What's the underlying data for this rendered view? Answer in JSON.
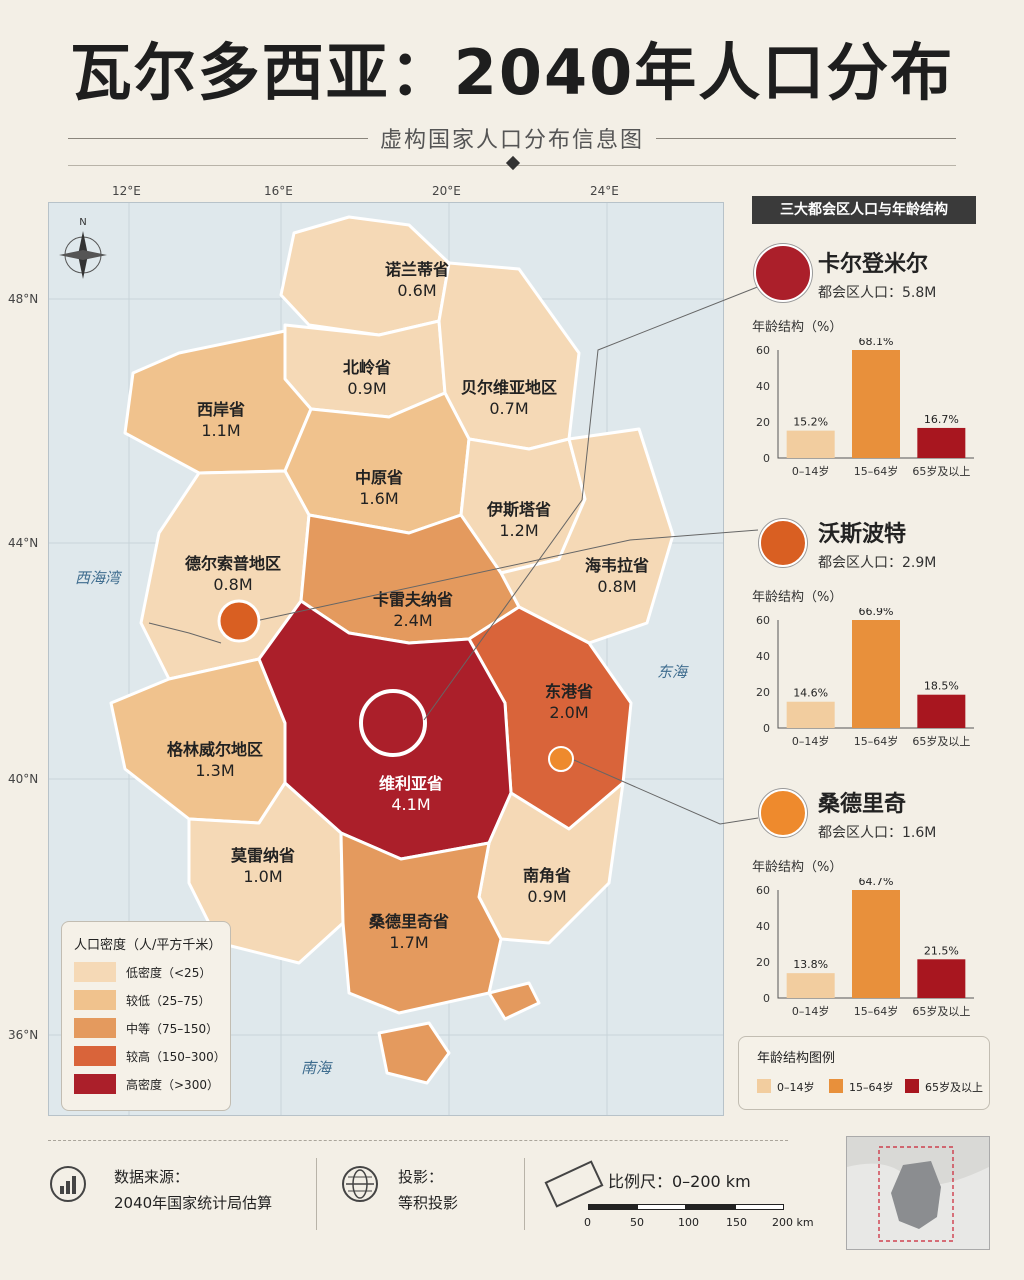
{
  "title": "瓦尔多西亚：2040年人口分布",
  "subtitle": "虚构国家人口分布信息图",
  "colors": {
    "low": "#f5d9b6",
    "lowmid": "#f0c28d",
    "mid": "#e49a5e",
    "high": "#d9643a",
    "veryhigh": "#ab1f2a",
    "age_child": "#f2cd9f",
    "age_work": "#e8903b",
    "age_old": "#a8161f"
  },
  "map": {
    "lon_labels": [
      "12°E",
      "16°E",
      "20°E",
      "24°E"
    ],
    "lat_labels": [
      "48°N",
      "44°N",
      "40°N",
      "36°N"
    ],
    "north": "N",
    "seas": {
      "west": "西海湾",
      "east": "东海",
      "south": "南海"
    },
    "provinces": [
      {
        "name": "诺兰蒂省",
        "pop": "0.6M",
        "level": "low"
      },
      {
        "name": "北岭省",
        "pop": "0.9M",
        "level": "low"
      },
      {
        "name": "贝尔维亚地区",
        "pop": "0.7M",
        "level": "low"
      },
      {
        "name": "西岸省",
        "pop": "1.1M",
        "level": "lowmid"
      },
      {
        "name": "中原省",
        "pop": "1.6M",
        "level": "lowmid"
      },
      {
        "name": "伊斯塔省",
        "pop": "1.2M",
        "level": "low"
      },
      {
        "name": "德尔索普地区",
        "pop": "0.8M",
        "level": "low"
      },
      {
        "name": "海韦拉省",
        "pop": "0.8M",
        "level": "low"
      },
      {
        "name": "卡雷夫纳省",
        "pop": "2.4M",
        "level": "mid"
      },
      {
        "name": "东港省",
        "pop": "2.0M",
        "level": "high"
      },
      {
        "name": "格林威尔地区",
        "pop": "1.3M",
        "level": "lowmid"
      },
      {
        "name": "维利亚省",
        "pop": "4.1M",
        "level": "veryhigh"
      },
      {
        "name": "莫雷纳省",
        "pop": "1.0M",
        "level": "low"
      },
      {
        "name": "南角省",
        "pop": "0.9M",
        "level": "low"
      },
      {
        "name": "桑德里奇省",
        "pop": "1.7M",
        "level": "mid"
      }
    ]
  },
  "density_legend": {
    "title": "人口密度（人/平方千米）",
    "items": [
      {
        "label": "低密度（<25）",
        "color": "#f5d9b6"
      },
      {
        "label": "较低（25–75）",
        "color": "#f0c28d"
      },
      {
        "label": "中等（75–150）",
        "color": "#e49a5e"
      },
      {
        "label": "较高（150–300）",
        "color": "#d9643a"
      },
      {
        "label": "高密度（>300）",
        "color": "#ab1f2a"
      }
    ]
  },
  "panel_title": "三大都会区人口与年龄结构",
  "metros": [
    {
      "name": "卡尔登米尔",
      "pop_label": "都会区人口：5.8M",
      "color": "#ab1f2a",
      "age_title": "年龄结构（%）"
    },
    {
      "name": "沃斯波特",
      "pop_label": "都会区人口：2.9M",
      "color": "#d95f22",
      "age_title": "年龄结构（%）"
    },
    {
      "name": "桑德里奇",
      "pop_label": "都会区人口：1.6M",
      "color": "#ee8a2d",
      "age_title": "年龄结构（%）"
    }
  ],
  "chart_data": [
    {
      "type": "bar",
      "title": "卡尔登米尔",
      "categories": [
        "0–14岁",
        "15–64岁",
        "65岁及以上"
      ],
      "values": [
        15.2,
        68.1,
        16.7
      ],
      "value_labels": [
        "15.2%",
        "68.1%",
        "16.7%"
      ],
      "ylim": [
        0,
        60
      ],
      "yticks": [
        "0",
        "20",
        "40",
        "60"
      ]
    },
    {
      "type": "bar",
      "title": "沃斯波特",
      "categories": [
        "0–14岁",
        "15–64岁",
        "65岁及以上"
      ],
      "values": [
        14.6,
        66.9,
        18.5
      ],
      "value_labels": [
        "14.6%",
        "66.9%",
        "18.5%"
      ],
      "ylim": [
        0,
        60
      ],
      "yticks": [
        "0",
        "20",
        "40",
        "60"
      ]
    },
    {
      "type": "bar",
      "title": "桑德里奇",
      "categories": [
        "0–14岁",
        "15–64岁",
        "65岁及以上"
      ],
      "values": [
        13.8,
        64.7,
        21.5
      ],
      "value_labels": [
        "13.8%",
        "64.7%",
        "21.5%"
      ],
      "ylim": [
        0,
        60
      ],
      "yticks": [
        "0",
        "20",
        "40",
        "60"
      ]
    }
  ],
  "age_legend": {
    "title": "年龄结构图例",
    "items": [
      "0–14岁",
      "15–64岁",
      "65岁及以上"
    ]
  },
  "footer": {
    "source_label": "数据来源：",
    "source_value": "2040年国家统计局估算",
    "projection_label": "投影：",
    "projection_value": "等积投影",
    "scale_label": "比例尺：0–200 km",
    "scale_ticks": [
      "0",
      "50",
      "100",
      "150",
      "200 km"
    ]
  }
}
